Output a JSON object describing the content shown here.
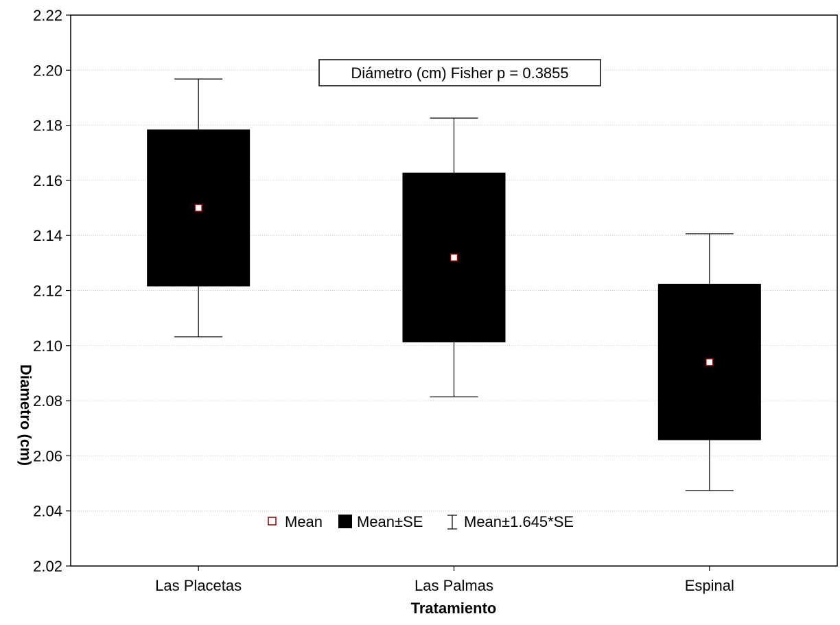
{
  "chart_data": {
    "type": "box",
    "title": "",
    "annotation": "Diámetro (cm) Fisher p = 0.3855",
    "xlabel": "Tratamiento",
    "ylabel": "Diametro (cm)",
    "ylim": [
      2.02,
      2.22
    ],
    "yticks": [
      2.02,
      2.04,
      2.06,
      2.08,
      2.1,
      2.12,
      2.14,
      2.16,
      2.18,
      2.2,
      2.22
    ],
    "ytick_labels": [
      "2.02",
      "2.04",
      "2.06",
      "2.08",
      "2.10",
      "2.12",
      "2.14",
      "2.16",
      "2.18",
      "2.20",
      "2.22"
    ],
    "grid": true,
    "categories": [
      "Las Placetas",
      "Las Palmas",
      "Espinal"
    ],
    "series": [
      {
        "category": "Las Placetas",
        "mean": 2.15,
        "se_low": 2.1215,
        "se_high": 2.1785,
        "whisker_low": 2.1032,
        "whisker_high": 2.1968
      },
      {
        "category": "Las Palmas",
        "mean": 2.132,
        "se_low": 2.1012,
        "se_high": 2.1628,
        "whisker_low": 2.0814,
        "whisker_high": 2.1826
      },
      {
        "category": "Espinal",
        "mean": 2.094,
        "se_low": 2.0657,
        "se_high": 2.1224,
        "whisker_low": 2.0474,
        "whisker_high": 2.1406
      }
    ],
    "legend": {
      "position": "bottom-center",
      "items": [
        "Mean",
        "Mean±SE",
        "Mean±1.645*SE"
      ]
    },
    "colors": {
      "box": "#000000",
      "mean_marker_stroke": "#8b0000",
      "mean_marker_fill": "#ffffff"
    }
  }
}
